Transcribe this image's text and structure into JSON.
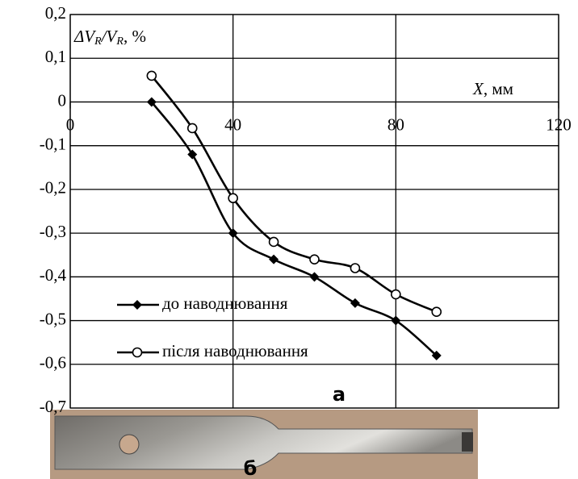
{
  "chart_data": {
    "type": "line",
    "y_label": [
      "ΔV",
      "R",
      "/V",
      "R",
      ", %"
    ],
    "x_label": [
      "X",
      ", мм"
    ],
    "x": [
      20,
      30,
      40,
      50,
      60,
      70,
      80,
      90
    ],
    "series": [
      {
        "name": "до наводнювання",
        "color": "#000000",
        "marker": "diamond",
        "values": [
          0,
          -0.12,
          -0.3,
          -0.36,
          -0.4,
          -0.46,
          -0.5,
          -0.58
        ]
      },
      {
        "name": "після наводнювання",
        "color": "#000000",
        "marker": "circle",
        "values": [
          0.06,
          -0.06,
          -0.22,
          -0.32,
          -0.36,
          -0.38,
          -0.44,
          -0.48
        ]
      }
    ],
    "xlim": [
      0,
      120
    ],
    "xticks": [
      0,
      40,
      80,
      120
    ],
    "ylim": [
      -0.7,
      0.2
    ],
    "yticks": [
      {
        "value": 0.2,
        "label": "0,2"
      },
      {
        "value": 0.1,
        "label": "0,1"
      },
      0,
      {
        "value": -0.1,
        "label": "-0,1"
      },
      {
        "value": -0.2,
        "label": "-0,2"
      },
      {
        "value": -0.3,
        "label": "-0,3"
      },
      {
        "value": -0.4,
        "label": "-0,4"
      },
      {
        "value": -0.5,
        "label": "-0,5"
      },
      {
        "value": -0.6,
        "label": "-0,6"
      },
      {
        "value": -0.7,
        "label": "-0,7"
      }
    ],
    "grid": true,
    "annotations": [
      "а",
      "б"
    ]
  }
}
